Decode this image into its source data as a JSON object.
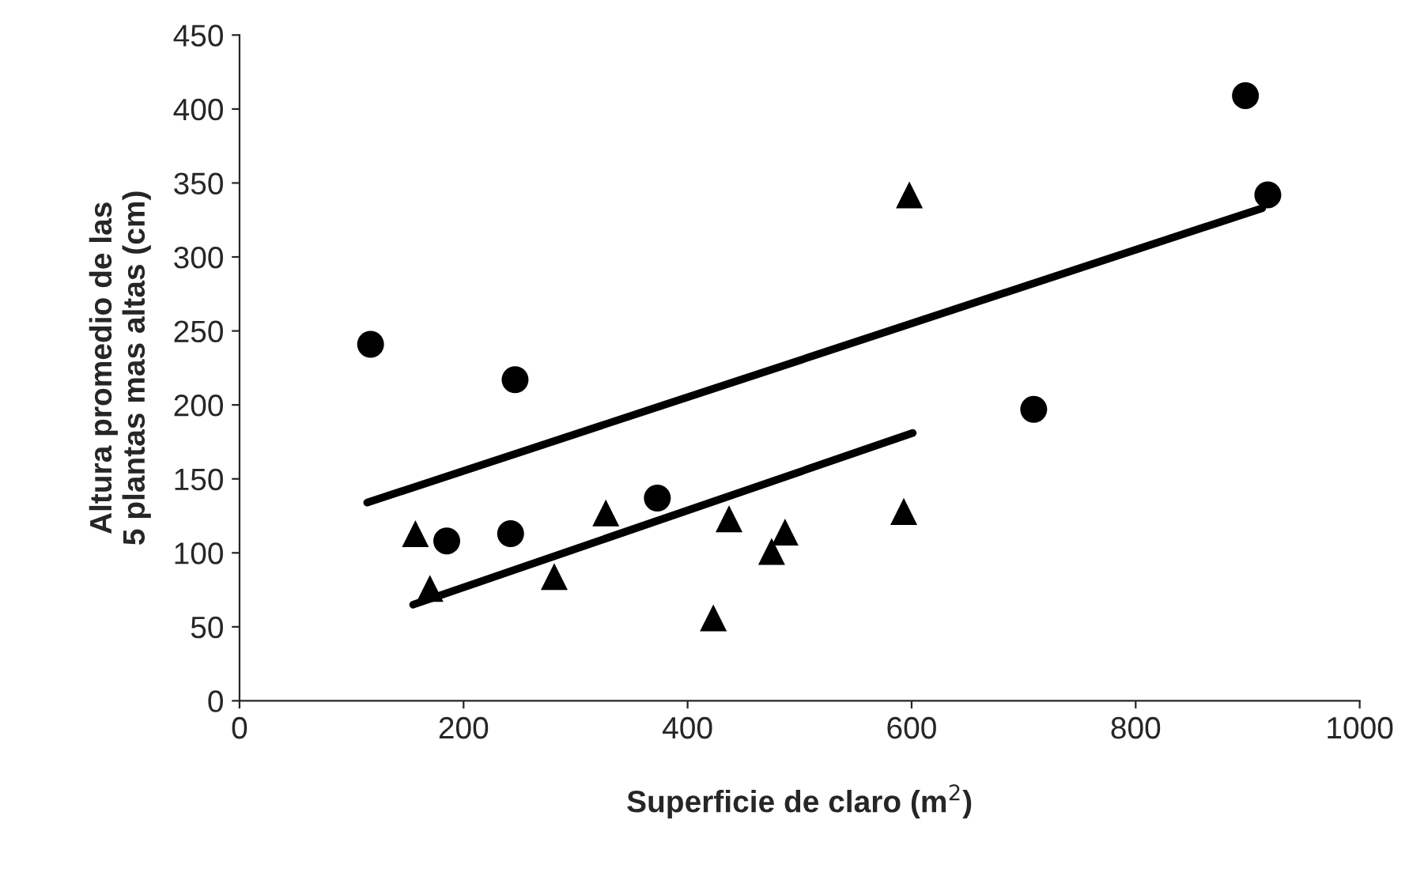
{
  "chart_data": {
    "type": "scatter",
    "xlabel": "Superficie de claro (m$^{2}$)",
    "ylabel": "Altura promedio de las\n5 plantas mas altas (cm)",
    "xlim": [
      0,
      1000
    ],
    "xticks": [
      0,
      200,
      400,
      600,
      800,
      1000
    ],
    "ylim": [
      0,
      450
    ],
    "yticks": [
      0,
      50,
      100,
      150,
      200,
      250,
      300,
      350,
      400,
      450
    ],
    "grid": false,
    "legend": false,
    "series": [
      {
        "color": "#000000",
        "marker": "circle",
        "x": [
          117,
          185,
          242,
          246,
          373,
          709,
          898,
          918
        ],
        "values": [
          241,
          108,
          113,
          217,
          137,
          197,
          409,
          342
        ]
      },
      {
        "color": "#000000",
        "marker": "triangle",
        "x": [
          157,
          170,
          281,
          327,
          423,
          437,
          475,
          487,
          593,
          598
        ],
        "values": [
          113,
          76,
          84,
          127,
          56,
          123,
          101,
          114,
          128,
          342
        ]
      },
      {
        "type": "line",
        "color": "#000000",
        "marker": "none",
        "line_style": "solid",
        "x": [
          114,
          913
        ],
        "values": [
          134,
          333
        ]
      },
      {
        "type": "line",
        "color": "#000000",
        "marker": "none",
        "line_style": "solid",
        "x": [
          155,
          601
        ],
        "values": [
          65,
          181
        ]
      }
    ]
  }
}
